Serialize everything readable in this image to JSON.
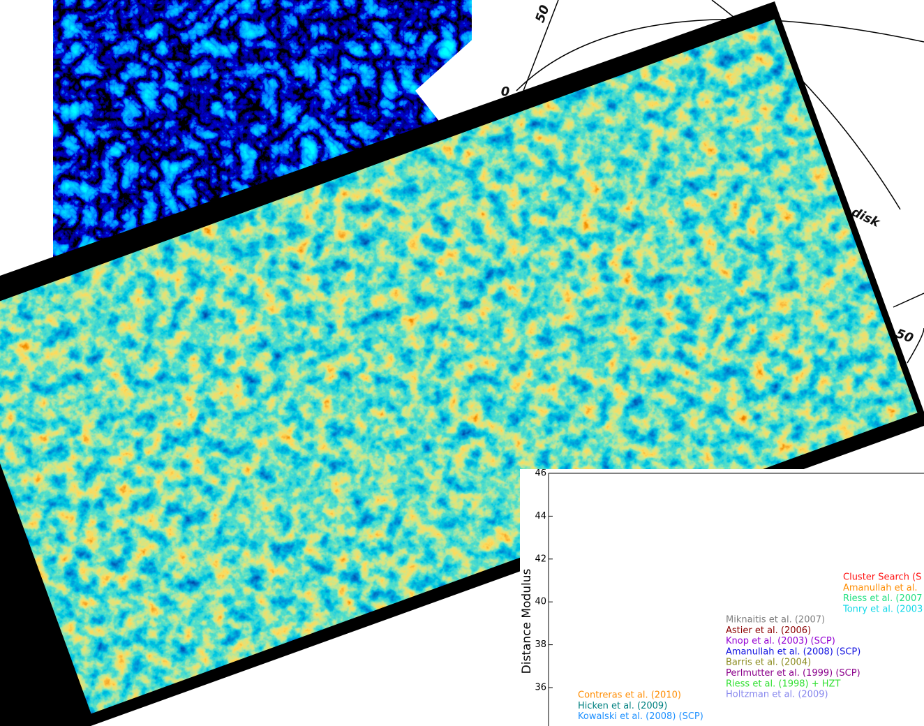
{
  "polar_plot": {
    "labels": [
      "50",
      "0",
      "disk",
      "50"
    ]
  },
  "hubble_diagram": {
    "y_label": "Distance Modulus",
    "yticks": [
      36,
      38,
      40,
      42,
      44,
      46
    ],
    "legend_groups": [
      [
        {
          "text": "Cluster Search (S",
          "color": "#ff1010"
        },
        {
          "text": "Amanullah et al.",
          "color": "#ff8c00"
        },
        {
          "text": "Riess et al. (2007",
          "color": "#20e080"
        },
        {
          "text": "Tonry et al. (2003",
          "color": "#10d8e8"
        }
      ],
      [
        {
          "text": "Miknaitis et al. (2007)",
          "color": "#808080"
        },
        {
          "text": "Astier et al. (2006)",
          "color": "#8b0000"
        },
        {
          "text": "Knop et al. (2003) (SCP)",
          "color": "#9400d3"
        },
        {
          "text": "Amanullah et al. (2008) (SCP)",
          "color": "#1010e0"
        },
        {
          "text": "Barris et al. (2004)",
          "color": "#8b8b20"
        },
        {
          "text": "Perlmutter et al. (1999) (SCP)",
          "color": "#8b008b"
        },
        {
          "text": "Riess et al. (1998) + HZT",
          "color": "#30e030"
        },
        {
          "text": "Holtzman et al. (2009)",
          "color": "#8888ee"
        }
      ],
      [
        {
          "text": "Contreras et al. (2010)",
          "color": "#ff8c00"
        },
        {
          "text": "Hicken et al. (2009)",
          "color": "#008080"
        },
        {
          "text": "Kowalski et al. (2008) (SCP)",
          "color": "#1e90ff"
        }
      ]
    ]
  }
}
